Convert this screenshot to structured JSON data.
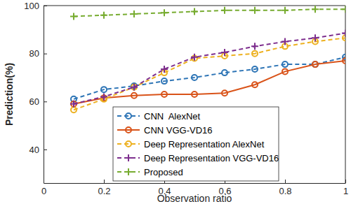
{
  "chart_data": {
    "type": "line",
    "x_label": "Observation ratio",
    "y_label": "Prediction(%)",
    "x": [
      0.1,
      0.2,
      0.3,
      0.4,
      0.5,
      0.6,
      0.7,
      0.8,
      0.9,
      1.0
    ],
    "xlim": [
      0,
      1
    ],
    "xticks": [
      0,
      0.2,
      0.4,
      0.6,
      0.8,
      1
    ],
    "ylim": [
      26,
      100
    ],
    "yticks": [
      40,
      60,
      80,
      100
    ],
    "grid": false,
    "legend": "bottom",
    "series": [
      {
        "name": "CNN  AlexNet",
        "color": "#2e75b6",
        "marker": "circle",
        "line_style": "dashed",
        "values": [
          61,
          65,
          66.5,
          68.5,
          70,
          72,
          73.5,
          75.5,
          75.5,
          78.5
        ]
      },
      {
        "name": "CNN VGG-VD16",
        "color": "#d95319",
        "marker": "circle",
        "line_style": "solid",
        "values": [
          59,
          61.5,
          62.5,
          63,
          63,
          63.5,
          67,
          72.5,
          75.5,
          77
        ]
      },
      {
        "name": "Deep Representation AlexNet",
        "color": "#edb120",
        "marker": "circle",
        "line_style": "dashed",
        "values": [
          56.5,
          61,
          66,
          72,
          78,
          79,
          80,
          83,
          85,
          86.5
        ]
      },
      {
        "name": "Deep Representation VGG-VD16",
        "color": "#7e2f8e",
        "marker": "plus",
        "line_style": "dashed",
        "values": [
          59,
          62,
          66,
          73.5,
          78.5,
          80.5,
          83,
          85,
          86.5,
          88.5
        ]
      },
      {
        "name": "Proposed",
        "color": "#77ac30",
        "marker": "plus",
        "line_style": "dashed",
        "values": [
          95.5,
          96,
          96.5,
          97,
          97.5,
          98,
          98,
          98,
          98.5,
          98.5
        ]
      }
    ]
  }
}
